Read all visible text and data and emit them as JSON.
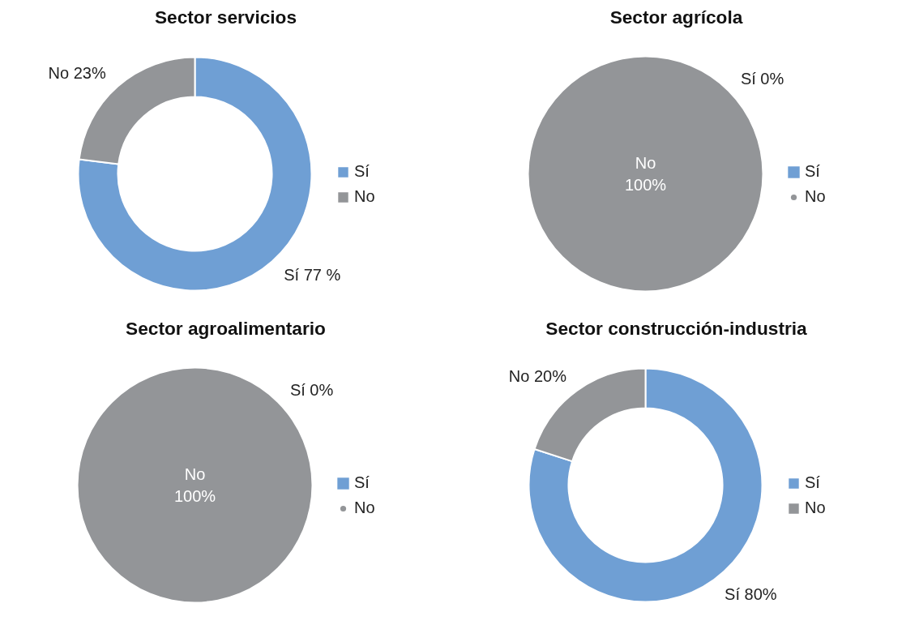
{
  "chart_data": [
    {
      "type": "donut",
      "title": "Sector servicios",
      "categories": [
        "Sí",
        "No"
      ],
      "values": [
        77,
        23
      ],
      "colors": [
        "#6f9fd4",
        "#939598"
      ],
      "value_labels": [
        "Sí 77 %",
        "No 23%"
      ],
      "legend": "right"
    },
    {
      "type": "pie",
      "title": "Sector agrícola",
      "categories": [
        "Sí",
        "No"
      ],
      "values": [
        0,
        100
      ],
      "colors": [
        "#6f9fd4",
        "#939598"
      ],
      "value_labels": [
        "Sí 0%",
        "No\n100%"
      ],
      "legend": "right"
    },
    {
      "type": "pie",
      "title": "Sector agroalimentario",
      "categories": [
        "Sí",
        "No"
      ],
      "values": [
        0,
        100
      ],
      "colors": [
        "#6f9fd4",
        "#939598"
      ],
      "value_labels": [
        "Sí 0%",
        "No\n100%"
      ],
      "legend": "right"
    },
    {
      "type": "donut",
      "title": "Sector construcción-industria",
      "categories": [
        "Sí",
        "No"
      ],
      "values": [
        80,
        20
      ],
      "colors": [
        "#6f9fd4",
        "#939598"
      ],
      "value_labels": [
        "Sí 80%",
        "No 20%"
      ],
      "legend": "right"
    }
  ]
}
